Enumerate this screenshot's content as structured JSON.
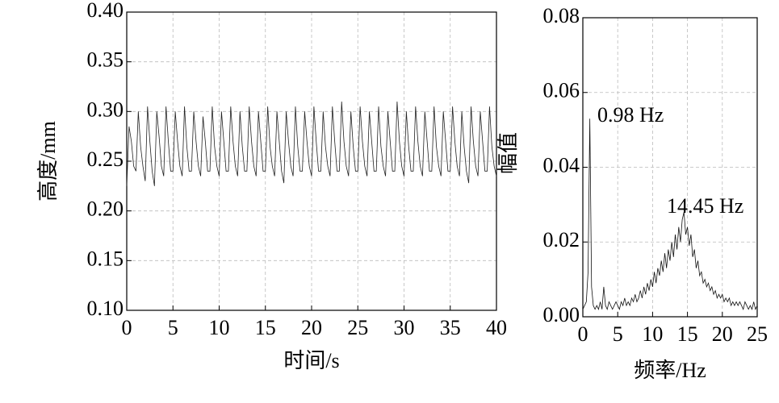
{
  "chart_data": [
    {
      "type": "line",
      "x_label": "时间/s",
      "y_label": "高度/mm",
      "color": "#222222",
      "grid": true,
      "xlim": [
        0,
        40
      ],
      "xticks": [
        0,
        5,
        10,
        15,
        20,
        25,
        30,
        35,
        40
      ],
      "ylim": [
        0.1,
        0.4
      ],
      "yticks": [
        {
          "value": 0.1,
          "label": "0.10"
        },
        0.15,
        {
          "value": 0.2,
          "label": "0.20"
        },
        0.25,
        {
          "value": 0.3,
          "label": "0.30"
        },
        0.35,
        {
          "value": 0.4,
          "label": "0.40"
        }
      ],
      "x": [
        0,
        0.25,
        0.5,
        0.75,
        1,
        1.25,
        1.5,
        1.75,
        2,
        2.25,
        2.5,
        2.75,
        3,
        3.25,
        3.5,
        3.75,
        4,
        4.25,
        4.5,
        4.75,
        5,
        5.25,
        5.5,
        5.75,
        6,
        6.25,
        6.5,
        6.75,
        7,
        7.25,
        7.5,
        7.75,
        8,
        8.25,
        8.5,
        8.75,
        9,
        9.25,
        9.5,
        9.75,
        10,
        10.25,
        10.5,
        10.75,
        11,
        11.25,
        11.5,
        11.75,
        12,
        12.25,
        12.5,
        12.75,
        13,
        13.25,
        13.5,
        13.75,
        14,
        14.25,
        14.5,
        14.75,
        15,
        15.25,
        15.5,
        15.75,
        16,
        16.25,
        16.5,
        16.75,
        17,
        17.25,
        17.5,
        17.75,
        18,
        18.25,
        18.5,
        18.75,
        19,
        19.25,
        19.5,
        19.75,
        20,
        20.25,
        20.5,
        20.75,
        21,
        21.25,
        21.5,
        21.75,
        22,
        22.25,
        22.5,
        22.75,
        23,
        23.25,
        23.5,
        23.75,
        24,
        24.25,
        24.5,
        24.75,
        25,
        25.25,
        25.5,
        25.75,
        26,
        26.25,
        26.5,
        26.75,
        27,
        27.25,
        27.5,
        27.75,
        28,
        28.25,
        28.5,
        28.75,
        29,
        29.25,
        29.5,
        29.75,
        30,
        30.25,
        30.5,
        30.75,
        31,
        31.25,
        31.5,
        31.75,
        32,
        32.25,
        32.5,
        32.75,
        33,
        33.25,
        33.5,
        33.75,
        34,
        34.25,
        34.5,
        34.75,
        35,
        35.25,
        35.5,
        35.75,
        36,
        36.25,
        36.5,
        36.75,
        37,
        37.25,
        37.5,
        37.75,
        38,
        38.25,
        38.5,
        38.75,
        39,
        39.25,
        39.5,
        39.75,
        40
      ],
      "values": [
        0.225,
        0.285,
        0.27,
        0.245,
        0.24,
        0.3,
        0.265,
        0.245,
        0.23,
        0.305,
        0.27,
        0.24,
        0.225,
        0.3,
        0.275,
        0.245,
        0.235,
        0.305,
        0.27,
        0.24,
        0.24,
        0.3,
        0.27,
        0.245,
        0.235,
        0.305,
        0.265,
        0.24,
        0.24,
        0.3,
        0.27,
        0.245,
        0.235,
        0.295,
        0.27,
        0.24,
        0.24,
        0.305,
        0.265,
        0.245,
        0.235,
        0.3,
        0.27,
        0.24,
        0.24,
        0.305,
        0.27,
        0.245,
        0.235,
        0.3,
        0.265,
        0.24,
        0.24,
        0.305,
        0.27,
        0.245,
        0.235,
        0.3,
        0.27,
        0.24,
        0.24,
        0.305,
        0.265,
        0.245,
        0.235,
        0.3,
        0.27,
        0.24,
        0.228,
        0.3,
        0.27,
        0.245,
        0.235,
        0.305,
        0.265,
        0.24,
        0.24,
        0.3,
        0.27,
        0.245,
        0.235,
        0.305,
        0.27,
        0.24,
        0.24,
        0.3,
        0.265,
        0.245,
        0.235,
        0.305,
        0.27,
        0.24,
        0.24,
        0.31,
        0.27,
        0.245,
        0.235,
        0.3,
        0.265,
        0.24,
        0.24,
        0.305,
        0.27,
        0.245,
        0.235,
        0.3,
        0.27,
        0.24,
        0.24,
        0.305,
        0.265,
        0.245,
        0.235,
        0.3,
        0.27,
        0.24,
        0.24,
        0.31,
        0.27,
        0.245,
        0.235,
        0.3,
        0.265,
        0.24,
        0.24,
        0.305,
        0.27,
        0.245,
        0.235,
        0.3,
        0.27,
        0.24,
        0.24,
        0.305,
        0.265,
        0.245,
        0.235,
        0.3,
        0.27,
        0.24,
        0.24,
        0.305,
        0.27,
        0.245,
        0.235,
        0.3,
        0.265,
        0.24,
        0.228,
        0.305,
        0.27,
        0.245,
        0.235,
        0.3,
        0.27,
        0.24,
        0.24,
        0.305,
        0.265,
        0.245,
        0.235
      ]
    },
    {
      "type": "line",
      "x_label": "频率/Hz",
      "y_label": "幅值",
      "color": "#111111",
      "grid": true,
      "annotations": [
        "0.98 Hz",
        "14.45 Hz"
      ],
      "xlim": [
        0,
        25
      ],
      "xticks": [
        0,
        5,
        10,
        15,
        20,
        25
      ],
      "ylim": [
        0,
        0.08
      ],
      "yticks": [
        {
          "value": 0,
          "label": "0.00"
        },
        0.02,
        0.04,
        0.06,
        0.08
      ],
      "x": [
        0,
        0.25,
        0.5,
        0.75,
        1,
        1.25,
        1.5,
        1.75,
        2,
        2.25,
        2.5,
        2.75,
        3,
        3.25,
        3.5,
        3.75,
        4,
        4.25,
        4.5,
        4.75,
        5,
        5.25,
        5.5,
        5.75,
        6,
        6.25,
        6.5,
        6.75,
        7,
        7.25,
        7.5,
        7.75,
        8,
        8.25,
        8.5,
        8.75,
        9,
        9.25,
        9.5,
        9.75,
        10,
        10.25,
        10.5,
        10.75,
        11,
        11.25,
        11.5,
        11.75,
        12,
        12.25,
        12.5,
        12.75,
        13,
        13.25,
        13.5,
        13.75,
        14,
        14.25,
        14.5,
        14.75,
        15,
        15.25,
        15.5,
        15.75,
        16,
        16.25,
        16.5,
        16.75,
        17,
        17.25,
        17.5,
        17.75,
        18,
        18.25,
        18.5,
        18.75,
        19,
        19.25,
        19.5,
        19.75,
        20,
        20.25,
        20.5,
        20.75,
        21,
        21.25,
        21.5,
        21.75,
        22,
        22.25,
        22.5,
        22.75,
        23,
        23.25,
        23.5,
        23.75,
        24,
        24.25,
        24.5,
        24.75,
        25
      ],
      "values": [
        0.002,
        0.003,
        0.004,
        0.012,
        0.053,
        0.008,
        0.003,
        0.002,
        0.003,
        0.002,
        0.004,
        0.002,
        0.008,
        0.003,
        0.002,
        0.004,
        0.003,
        0.002,
        0.003,
        0.004,
        0.003,
        0.002,
        0.004,
        0.003,
        0.005,
        0.003,
        0.004,
        0.003,
        0.005,
        0.004,
        0.006,
        0.004,
        0.005,
        0.007,
        0.005,
        0.008,
        0.006,
        0.009,
        0.007,
        0.01,
        0.008,
        0.012,
        0.009,
        0.013,
        0.011,
        0.015,
        0.012,
        0.017,
        0.013,
        0.018,
        0.015,
        0.02,
        0.016,
        0.022,
        0.018,
        0.024,
        0.02,
        0.026,
        0.028,
        0.022,
        0.024,
        0.019,
        0.022,
        0.016,
        0.018,
        0.013,
        0.015,
        0.011,
        0.012,
        0.009,
        0.01,
        0.008,
        0.009,
        0.007,
        0.008,
        0.006,
        0.007,
        0.005,
        0.006,
        0.005,
        0.006,
        0.004,
        0.005,
        0.004,
        0.005,
        0.003,
        0.004,
        0.003,
        0.004,
        0.003,
        0.004,
        0.003,
        0.002,
        0.004,
        0.003,
        0.002,
        0.003,
        0.002,
        0.004,
        0.002,
        0.003
      ]
    }
  ]
}
